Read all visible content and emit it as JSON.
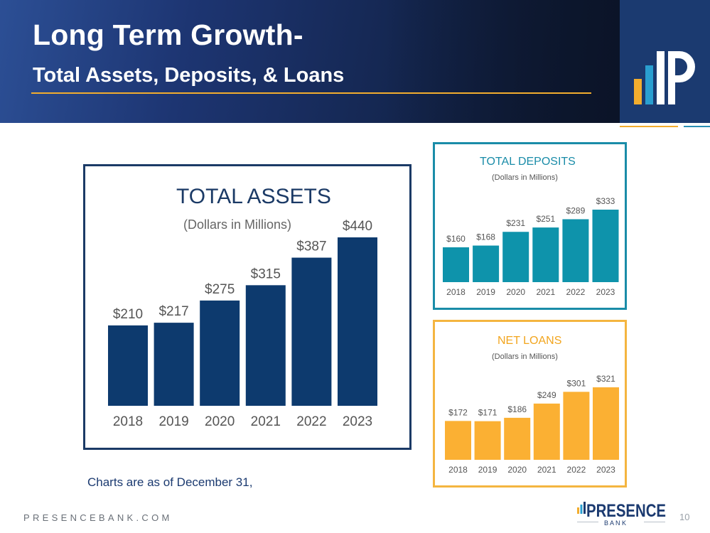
{
  "header": {
    "title": "Long Term Growth-",
    "subtitle": "Total Assets, Deposits, & Loans"
  },
  "colors": {
    "assets": "#0d3a6e",
    "deposits": "#0e93ab",
    "loans": "#fbb033",
    "assets_title": "#1b3a66",
    "deposits_title": "#1a8ca8",
    "loans_title": "#f2a51e",
    "label": "#555555"
  },
  "chart_data": [
    {
      "type": "bar",
      "title": "TOTAL ASSETS",
      "subtitle": "(Dollars in Millions)",
      "categories": [
        "2018",
        "2019",
        "2020",
        "2021",
        "2022",
        "2023"
      ],
      "values": [
        210,
        217,
        275,
        315,
        387,
        440
      ],
      "data_labels": [
        "$210",
        "$217",
        "$275",
        "$315",
        "$387",
        "$440"
      ],
      "ylim": [
        0,
        440
      ]
    },
    {
      "type": "bar",
      "title": "TOTAL DEPOSITS",
      "subtitle": "(Dollars in Millions)",
      "categories": [
        "2018",
        "2019",
        "2020",
        "2021",
        "2022",
        "2023"
      ],
      "values": [
        160,
        168,
        231,
        251,
        289,
        333
      ],
      "data_labels": [
        "$160",
        "$168",
        "$231",
        "$251",
        "$289",
        "$333"
      ],
      "ylim": [
        0,
        333
      ]
    },
    {
      "type": "bar",
      "title": "NET LOANS",
      "subtitle": "(Dollars in Millions)",
      "categories": [
        "2018",
        "2019",
        "2020",
        "2021",
        "2022",
        "2023"
      ],
      "values": [
        172,
        171,
        186,
        249,
        301,
        321
      ],
      "data_labels": [
        "$172",
        "$171",
        "$186",
        "$249",
        "$301",
        "$321"
      ],
      "ylim": [
        0,
        321
      ]
    }
  ],
  "footnote": "Charts are as of December 31,",
  "footer": {
    "url": "PRESENCEBANK.COM",
    "brand": "PRESENCE",
    "brand_sub": "B A N K",
    "page_number": "10"
  }
}
